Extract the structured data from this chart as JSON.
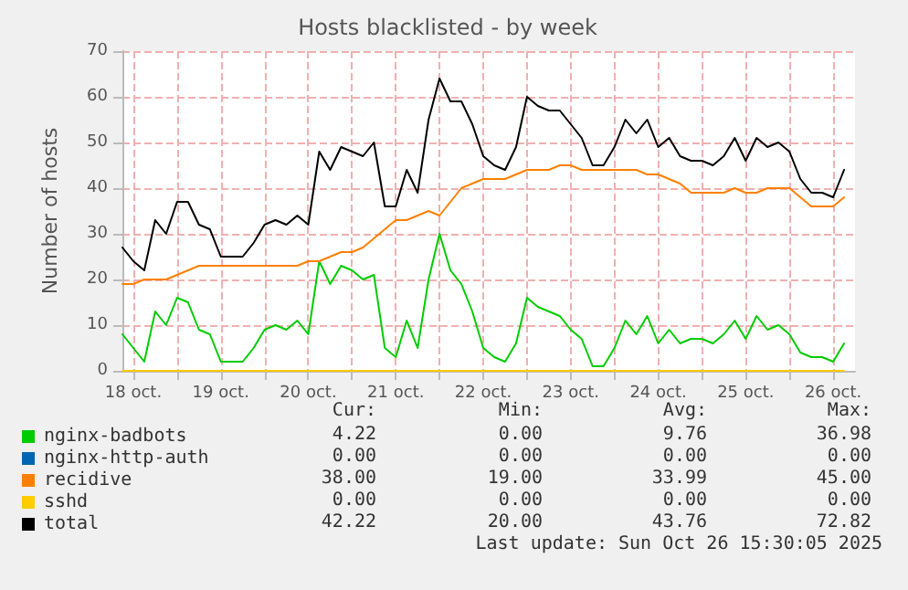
{
  "chart_data": {
    "type": "line",
    "title": "Hosts blacklisted - by week",
    "ylabel": "Number of hosts",
    "x": [
      "2025-10-18T09:00",
      "2025-10-18T12:00",
      "2025-10-18T15:00",
      "2025-10-18T18:00",
      "2025-10-18T21:00",
      "2025-10-19T00:00",
      "2025-10-19T03:00",
      "2025-10-19T06:00",
      "2025-10-19T09:00",
      "2025-10-19T12:00",
      "2025-10-19T15:00",
      "2025-10-19T18:00",
      "2025-10-19T21:00",
      "2025-10-20T00:00",
      "2025-10-20T03:00",
      "2025-10-20T06:00",
      "2025-10-20T09:00",
      "2025-10-20T12:00",
      "2025-10-20T15:00",
      "2025-10-20T18:00",
      "2025-10-20T21:00",
      "2025-10-21T00:00",
      "2025-10-21T03:00",
      "2025-10-21T06:00",
      "2025-10-21T09:00",
      "2025-10-21T12:00",
      "2025-10-21T15:00",
      "2025-10-21T18:00",
      "2025-10-21T21:00",
      "2025-10-22T00:00",
      "2025-10-22T03:00",
      "2025-10-22T06:00",
      "2025-10-22T09:00",
      "2025-10-22T12:00",
      "2025-10-22T15:00",
      "2025-10-22T18:00",
      "2025-10-22T21:00",
      "2025-10-23T00:00",
      "2025-10-23T03:00",
      "2025-10-23T06:00",
      "2025-10-23T09:00",
      "2025-10-23T12:00",
      "2025-10-23T15:00",
      "2025-10-23T18:00",
      "2025-10-23T21:00",
      "2025-10-24T00:00",
      "2025-10-24T03:00",
      "2025-10-24T06:00",
      "2025-10-24T09:00",
      "2025-10-24T12:00",
      "2025-10-24T15:00",
      "2025-10-24T18:00",
      "2025-10-24T21:00",
      "2025-10-25T00:00",
      "2025-10-25T03:00",
      "2025-10-25T06:00",
      "2025-10-25T09:00",
      "2025-10-25T12:00",
      "2025-10-25T15:00",
      "2025-10-25T18:00",
      "2025-10-25T21:00",
      "2025-10-26T00:00",
      "2025-10-26T03:00",
      "2025-10-26T06:00",
      "2025-10-26T09:00",
      "2025-10-26T12:00",
      "2025-10-26T15:00"
    ],
    "series": [
      {
        "name": "nginx-badbots",
        "color": "#00cc00",
        "values": [
          8,
          5,
          2,
          13,
          10,
          16,
          15,
          9,
          8,
          2,
          2,
          2,
          5,
          9,
          10,
          9,
          11,
          8,
          24,
          19,
          23,
          22,
          20,
          21,
          5,
          3,
          11,
          5,
          20,
          30,
          22,
          19,
          13,
          5,
          3,
          2,
          6,
          16,
          14,
          13,
          12,
          9,
          7,
          1,
          1,
          5,
          11,
          8,
          12,
          6,
          9,
          6,
          7,
          7,
          6,
          8,
          11,
          7,
          12,
          9,
          10,
          8,
          4,
          3,
          3,
          2,
          6
        ]
      },
      {
        "name": "nginx-http-auth",
        "color": "#0066b3",
        "values": [
          null,
          null,
          null,
          null,
          null,
          null,
          null,
          null,
          null,
          null,
          null,
          null,
          null,
          null,
          null,
          null,
          null,
          null,
          null,
          null,
          null,
          null,
          null,
          null,
          null,
          null,
          null,
          null,
          null,
          null,
          null,
          null,
          null,
          null,
          null,
          null,
          null,
          null,
          null,
          null,
          null,
          null,
          null,
          null,
          null,
          null,
          null,
          null,
          null,
          null,
          null,
          null,
          null,
          null,
          null,
          null,
          null,
          null,
          null,
          null,
          null,
          null,
          null,
          null,
          null,
          null,
          null
        ]
      },
      {
        "name": "recidive",
        "color": "#ff8000",
        "values": [
          19,
          19,
          20,
          20,
          20,
          21,
          22,
          23,
          23,
          23,
          23,
          23,
          23,
          23,
          23,
          23,
          23,
          24,
          24,
          25,
          26,
          26,
          27,
          29,
          31,
          33,
          33,
          34,
          35,
          34,
          37,
          40,
          41,
          42,
          42,
          42,
          43,
          44,
          44,
          44,
          45,
          45,
          44,
          44,
          44,
          44,
          44,
          44,
          43,
          43,
          42,
          41,
          39,
          39,
          39,
          39,
          40,
          39,
          39,
          40,
          40,
          40,
          38,
          36,
          36,
          36,
          38
        ]
      },
      {
        "name": "sshd",
        "color": "#ffcc00",
        "values": [
          0,
          0,
          0,
          0,
          0,
          0,
          0,
          0,
          0,
          0,
          0,
          0,
          0,
          0,
          0,
          0,
          0,
          0,
          0,
          0,
          0,
          0,
          0,
          0,
          0,
          0,
          0,
          0,
          0,
          0,
          0,
          0,
          0,
          0,
          0,
          0,
          0,
          0,
          0,
          0,
          0,
          0,
          0,
          0,
          0,
          0,
          0,
          0,
          0,
          0,
          0,
          0,
          0,
          0,
          0,
          0,
          0,
          0,
          0,
          0,
          0,
          0,
          0,
          0,
          0,
          0,
          0
        ]
      },
      {
        "name": "total",
        "color": "#000000",
        "values": [
          27,
          24,
          22,
          33,
          30,
          37,
          37,
          32,
          31,
          25,
          25,
          25,
          28,
          32,
          33,
          32,
          34,
          32,
          48,
          44,
          49,
          48,
          47,
          50,
          36,
          36,
          44,
          39,
          55,
          64,
          59,
          59,
          54,
          47,
          45,
          44,
          49,
          60,
          58,
          57,
          57,
          54,
          51,
          45,
          45,
          49,
          55,
          52,
          55,
          49,
          51,
          47,
          46,
          46,
          45,
          47,
          51,
          46,
          51,
          49,
          50,
          48,
          42,
          39,
          39,
          38,
          44
        ]
      }
    ],
    "xlim": [
      "2025-10-18T09:00",
      "2025-10-26T18:00"
    ],
    "xticks": [
      {
        "value": "2025-10-18T12:00",
        "label": "18 oct."
      },
      {
        "value": "2025-10-19T00:00",
        "label": null
      },
      {
        "value": "2025-10-19T12:00",
        "label": "19 oct."
      },
      {
        "value": "2025-10-20T00:00",
        "label": null
      },
      {
        "value": "2025-10-20T12:00",
        "label": "20 oct."
      },
      {
        "value": "2025-10-21T00:00",
        "label": null
      },
      {
        "value": "2025-10-21T12:00",
        "label": "21 oct."
      },
      {
        "value": "2025-10-22T00:00",
        "label": null
      },
      {
        "value": "2025-10-22T12:00",
        "label": "22 oct."
      },
      {
        "value": "2025-10-23T00:00",
        "label": null
      },
      {
        "value": "2025-10-23T12:00",
        "label": "23 oct."
      },
      {
        "value": "2025-10-24T00:00",
        "label": null
      },
      {
        "value": "2025-10-24T12:00",
        "label": "24 oct."
      },
      {
        "value": "2025-10-25T00:00",
        "label": null
      },
      {
        "value": "2025-10-25T12:00",
        "label": "25 oct."
      },
      {
        "value": "2025-10-26T00:00",
        "label": null
      },
      {
        "value": "2025-10-26T12:00",
        "label": "26 oct."
      }
    ],
    "ylim": [
      0,
      70
    ],
    "yticks": [
      0,
      10,
      20,
      30,
      40,
      50,
      60,
      70
    ],
    "grid": true,
    "legend": "bottom left",
    "annotations": [
      "Cur:",
      "Min:",
      "Avg:",
      "Max:",
      "4.22",
      "0.00",
      "9.76",
      "36.98",
      "0.00",
      "0.00",
      "0.00",
      "0.00",
      "38.00",
      "19.00",
      "33.99",
      "45.00",
      "0.00",
      "0.00",
      "0.00",
      "0.00",
      "42.22",
      "20.00",
      "43.76",
      "72.82",
      "Last update: Sun Oct 26 15:30:05 2025"
    ]
  }
}
